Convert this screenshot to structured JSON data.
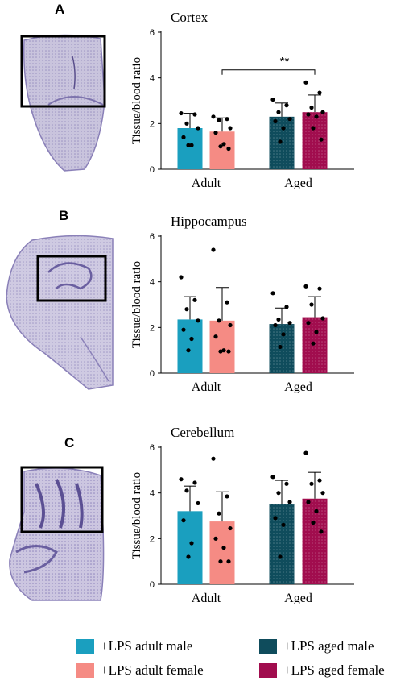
{
  "panels": [
    {
      "letter": "A",
      "title": "Cortex"
    },
    {
      "letter": "B",
      "title": "Hippocampus"
    },
    {
      "letter": "C",
      "title": "Cerebellum"
    }
  ],
  "colors": {
    "adult_male": "#1a9fbf",
    "adult_female": "#f58b84",
    "aged_male": "#0f4c5c",
    "aged_female": "#a10d4e"
  },
  "chart_data": [
    {
      "type": "bar",
      "title": "Cortex",
      "ylabel": "Tissue/blood ratio",
      "categories": [
        "Adult",
        "Aged"
      ],
      "ylim": [
        0,
        6
      ],
      "yticks": [
        "0",
        "2",
        "4",
        "6"
      ],
      "bars": [
        {
          "series": "+LPS adult male",
          "group": "Adult",
          "mean": 1.8,
          "sd": 0.65,
          "points": [
            2.45,
            2.4,
            2.0,
            1.8,
            1.4,
            1.05,
            1.05
          ]
        },
        {
          "series": "+LPS adult female",
          "group": "Adult",
          "mean": 1.65,
          "sd": 0.6,
          "points": [
            2.3,
            2.2,
            2.15,
            1.8,
            1.6,
            1.1,
            1.0,
            0.9
          ]
        },
        {
          "series": "+LPS aged male",
          "group": "Aged",
          "mean": 2.3,
          "sd": 0.6,
          "points": [
            3.05,
            2.8,
            2.5,
            2.2,
            2.1,
            1.8,
            1.2
          ]
        },
        {
          "series": "+LPS aged female",
          "group": "Aged",
          "mean": 2.5,
          "sd": 0.75,
          "points": [
            3.8,
            3.35,
            2.7,
            2.5,
            2.4,
            2.3,
            1.8,
            1.3
          ]
        }
      ],
      "annotation": {
        "text": "**",
        "from_bar": 1,
        "to_bar": 3,
        "y": 4.35
      }
    },
    {
      "type": "bar",
      "title": "Hippocampus",
      "ylabel": "Tissue/blood ratio",
      "categories": [
        "Adult",
        "Aged"
      ],
      "ylim": [
        0,
        6
      ],
      "yticks": [
        "0",
        "2",
        "4",
        "6"
      ],
      "bars": [
        {
          "series": "+LPS adult male",
          "group": "Adult",
          "mean": 2.35,
          "sd": 1.0,
          "points": [
            4.2,
            3.2,
            2.8,
            2.3,
            1.9,
            1.5,
            1.0
          ]
        },
        {
          "series": "+LPS adult female",
          "group": "Adult",
          "mean": 2.3,
          "sd": 1.45,
          "points": [
            5.4,
            3.1,
            2.3,
            2.1,
            1.6,
            1.0,
            0.95,
            0.95
          ]
        },
        {
          "series": "+LPS aged male",
          "group": "Aged",
          "mean": 2.15,
          "sd": 0.7,
          "points": [
            3.5,
            2.9,
            2.35,
            2.2,
            2.1,
            1.7,
            1.15
          ]
        },
        {
          "series": "+LPS aged female",
          "group": "Aged",
          "mean": 2.45,
          "sd": 0.9,
          "points": [
            3.8,
            3.7,
            3.0,
            2.4,
            2.2,
            1.8,
            1.3
          ]
        }
      ]
    },
    {
      "type": "bar",
      "title": "Cerebellum",
      "ylabel": "Tissue/blood ratio",
      "categories": [
        "Adult",
        "Aged"
      ],
      "ylim": [
        0,
        6
      ],
      "yticks": [
        "0",
        "2",
        "4",
        "6"
      ],
      "bars": [
        {
          "series": "+LPS adult male",
          "group": "Adult",
          "mean": 3.2,
          "sd": 1.1,
          "points": [
            4.6,
            4.45,
            4.1,
            3.55,
            2.8,
            1.8,
            1.2
          ]
        },
        {
          "series": "+LPS adult female",
          "group": "Adult",
          "mean": 2.75,
          "sd": 1.3,
          "points": [
            5.5,
            3.85,
            3.1,
            2.45,
            2.0,
            1.6,
            1.0,
            1.0
          ]
        },
        {
          "series": "+LPS aged male",
          "group": "Aged",
          "mean": 3.5,
          "sd": 1.05,
          "points": [
            4.7,
            4.4,
            4.0,
            3.6,
            2.9,
            2.6,
            1.2
          ]
        },
        {
          "series": "+LPS aged female",
          "group": "Aged",
          "mean": 3.75,
          "sd": 1.15,
          "points": [
            5.75,
            4.55,
            4.4,
            4.0,
            3.6,
            3.2,
            2.7,
            2.3
          ]
        }
      ]
    }
  ],
  "legend": [
    {
      "label": "+LPS adult male",
      "color": "#1a9fbf"
    },
    {
      "label": "+LPS aged male",
      "color": "#0f4c5c"
    },
    {
      "label": "+LPS adult female",
      "color": "#f58b84"
    },
    {
      "label": "+LPS aged female",
      "color": "#a10d4e"
    }
  ]
}
